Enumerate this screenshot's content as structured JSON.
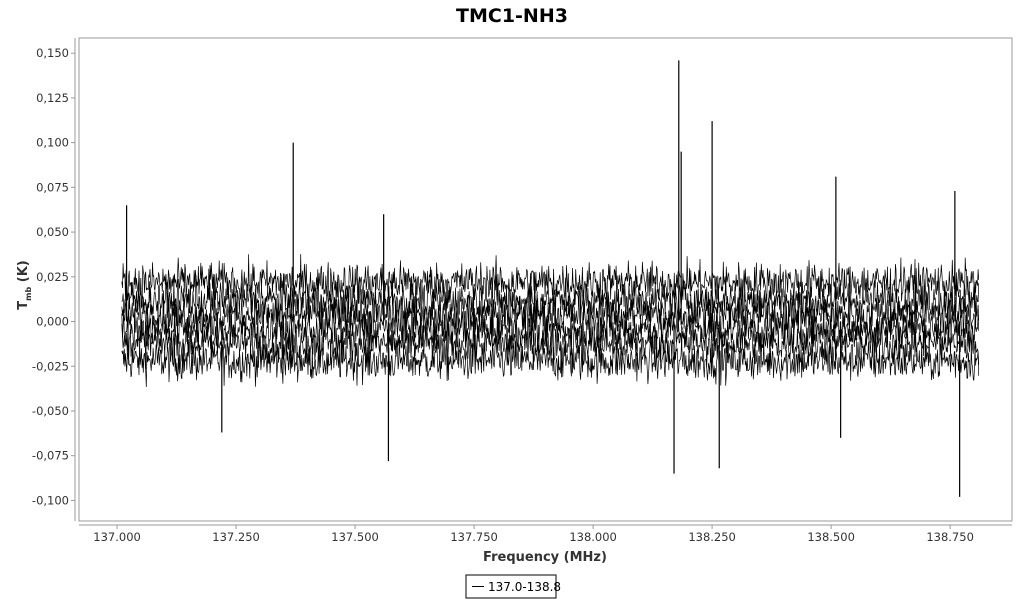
{
  "chart_data": {
    "type": "line",
    "title": "TMC1-NH3",
    "xlabel": "Frequency (MHz)",
    "ylabel": "T",
    "ylabel_sub": "mb",
    "ylabel_unit": "(K)",
    "xlim": [
      136.92,
      138.88
    ],
    "ylim": [
      -0.1115,
      0.1585
    ],
    "x_ticks": [
      137.0,
      137.25,
      137.5,
      137.75,
      138.0,
      138.25,
      138.5,
      138.75
    ],
    "x_tick_labels": [
      "137.000",
      "137.250",
      "137.500",
      "137.750",
      "138.000",
      "138.250",
      "138.500",
      "138.750"
    ],
    "y_ticks": [
      0.15,
      0.125,
      0.1,
      0.075,
      0.05,
      0.025,
      0.0,
      -0.025,
      -0.05,
      -0.075,
      -0.1
    ],
    "y_tick_labels": [
      "0,150",
      "0,125",
      "0,100",
      "0,075",
      "0,050",
      "0,025",
      "0,000",
      "-0,025",
      "-0,050",
      "-0,075",
      "-0,100"
    ],
    "grid": false,
    "legend_position": "bottom-center",
    "series": [
      {
        "name": "137.0-138.8",
        "color": "#000000",
        "x_range": [
          137.01,
          138.81
        ],
        "baseline_offsets": [
          -0.022,
          -0.012,
          -0.004,
          0.004,
          0.012,
          0.022
        ],
        "noise_band": 0.048,
        "spikes": [
          {
            "x": 137.02,
            "y": 0.065
          },
          {
            "x": 137.37,
            "y": 0.1
          },
          {
            "x": 137.22,
            "y": -0.062
          },
          {
            "x": 137.57,
            "y": -0.078
          },
          {
            "x": 137.56,
            "y": 0.06
          },
          {
            "x": 138.17,
            "y": -0.085
          },
          {
            "x": 138.18,
            "y": 0.146
          },
          {
            "x": 138.185,
            "y": 0.095
          },
          {
            "x": 138.25,
            "y": 0.112
          },
          {
            "x": 138.265,
            "y": -0.082
          },
          {
            "x": 138.51,
            "y": 0.081
          },
          {
            "x": 138.52,
            "y": -0.065
          },
          {
            "x": 138.76,
            "y": 0.073
          },
          {
            "x": 138.77,
            "y": -0.098
          }
        ]
      }
    ]
  }
}
